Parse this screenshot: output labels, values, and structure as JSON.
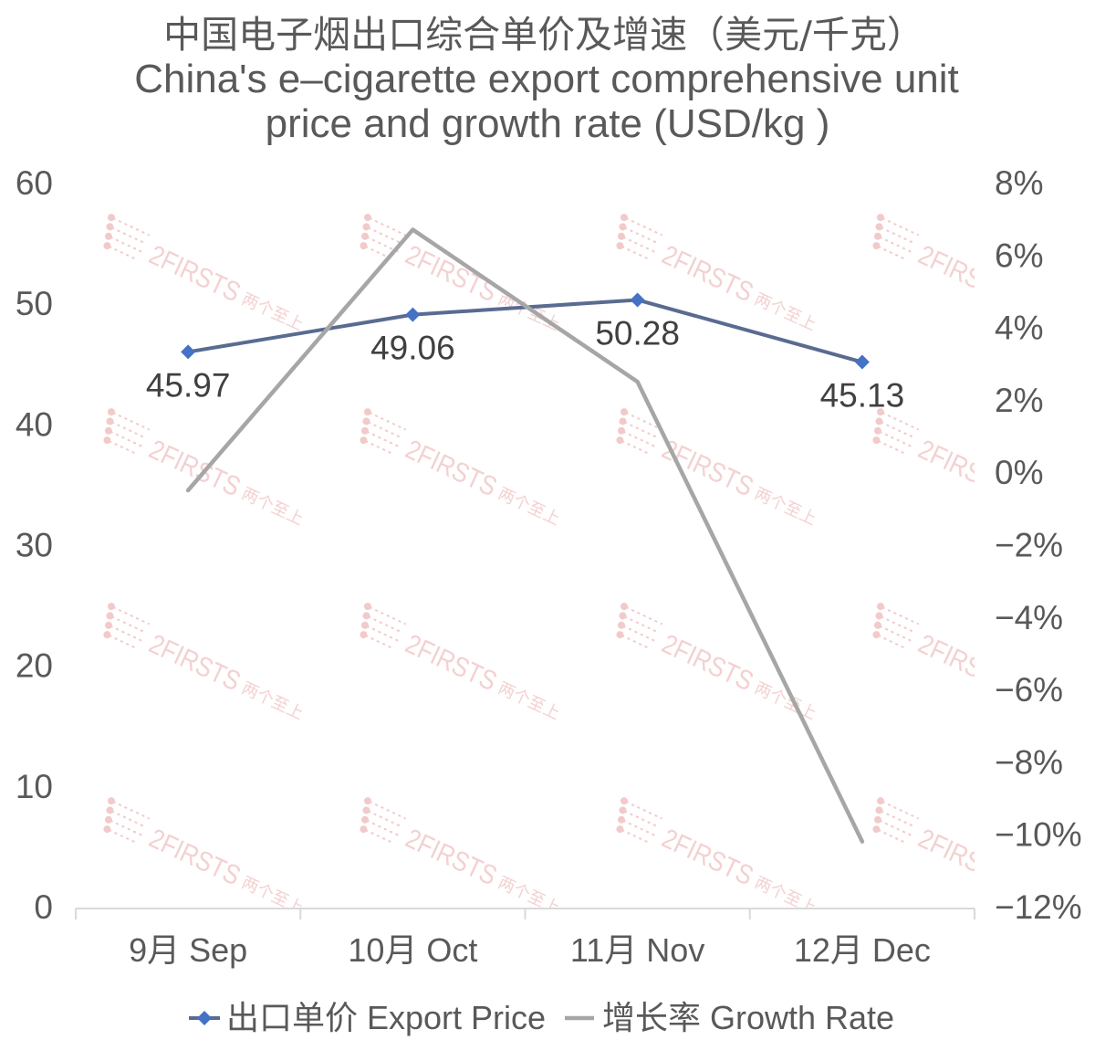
{
  "chart_data": {
    "type": "line",
    "title_lines": [
      "中国电子烟出口综合单价及增速（美元/千克）",
      "China's e–cigarette export comprehensive unit",
      "price and growth rate (USD/kg )"
    ],
    "categories": [
      "9月 Sep",
      "10月 Oct",
      "11月 Nov",
      "12月 Dec"
    ],
    "series": [
      {
        "name": "出口单价 Export Price",
        "axis": "left",
        "values": [
          45.97,
          49.06,
          50.28,
          45.13
        ],
        "color": "#5a6b91",
        "marker": "diamond",
        "marker_color": "#4472c4",
        "data_labels": true
      },
      {
        "name": "增长率 Growth Rate",
        "axis": "right",
        "unit": "%",
        "values": [
          -0.5,
          6.7,
          2.5,
          -10.2
        ],
        "color": "#a6a6a6",
        "marker": "none",
        "data_labels": false
      }
    ],
    "ylim": [
      0,
      60
    ],
    "y_ticks": [
      0,
      10,
      20,
      30,
      40,
      50,
      60
    ],
    "y2lim": [
      -12,
      8
    ],
    "y2_ticks": [
      "8%",
      "6%",
      "4%",
      "2%",
      "0%",
      "−2%",
      "−4%",
      "−6%",
      "−8%",
      "−10%",
      "−12%"
    ],
    "grid": false,
    "legend": "bottom",
    "text_color": "#595959",
    "axis_color": "#d9d9d9"
  },
  "watermark": {
    "brand": "2FIRSTS",
    "brand_cn": "两个至上",
    "color": "#f2caca"
  }
}
